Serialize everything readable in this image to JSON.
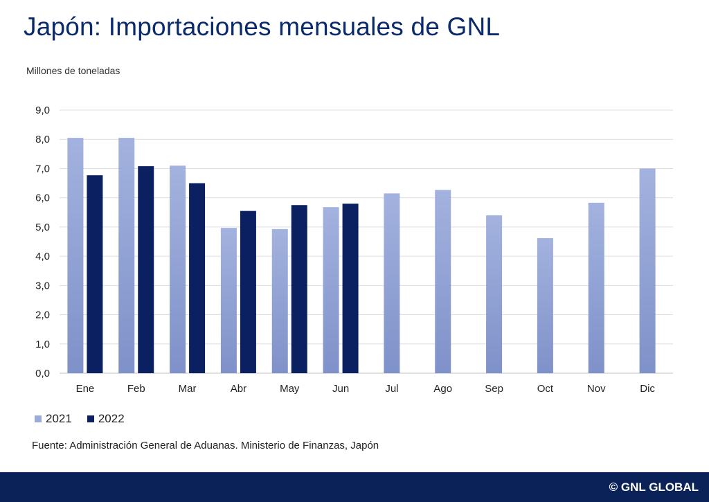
{
  "chart_data": {
    "type": "bar",
    "title": "Japón: Importaciones mensuales de GNL",
    "ylabel": "Millones de toneladas",
    "categories": [
      "Ene",
      "Feb",
      "Mar",
      "Abr",
      "May",
      "Jun",
      "Jul",
      "Ago",
      "Sep",
      "Oct",
      "Nov",
      "Dic"
    ],
    "series": [
      {
        "name": "2021",
        "color": "#9aaad9",
        "values": [
          8.05,
          8.05,
          7.1,
          4.97,
          4.93,
          5.68,
          6.15,
          6.27,
          5.4,
          4.62,
          5.83,
          7.0
        ]
      },
      {
        "name": "2022",
        "color": "#0a2060",
        "values": [
          6.77,
          7.08,
          6.5,
          5.55,
          5.75,
          5.8,
          null,
          null,
          null,
          null,
          null,
          null
        ]
      }
    ],
    "ylim": [
      0,
      9
    ],
    "yticks": [
      "0,0",
      "1,0",
      "2,0",
      "3,0",
      "4,0",
      "5,0",
      "6,0",
      "7,0",
      "8,0",
      "9,0"
    ],
    "grid": true,
    "legend": "bottom-left"
  },
  "source": "Fuente: Administración General de Aduanas. Ministerio de Finanzas, Japón",
  "brand": "© GNL GLOBAL"
}
